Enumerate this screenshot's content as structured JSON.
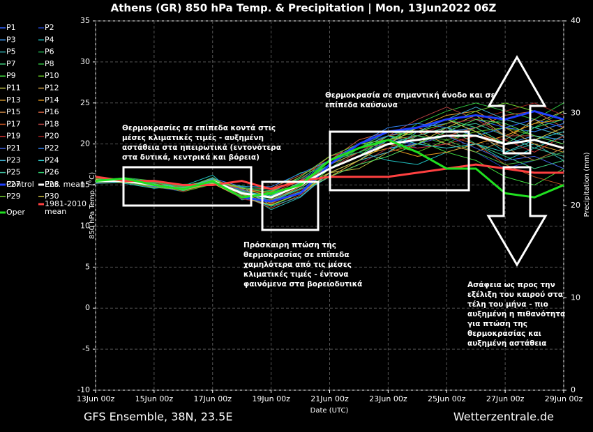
{
  "chart_data": {
    "type": "line",
    "title": "Athens  (GR)  850 hPa Temp. & Precipitation | Mon, 13Jun2022 06Z",
    "ylabel": "850 hPa Temp. (°C)",
    "y2label": "Precipitation (mm)",
    "xlabel": "Date (UTC)",
    "footer_left": "GFS Ensemble, 38N, 23.5E",
    "footer_right": "Wetterzentrale.de",
    "grid": true,
    "x": [
      0,
      1,
      2,
      3,
      4,
      5,
      6,
      7,
      8,
      9,
      10,
      11,
      12,
      13,
      14,
      15,
      16
    ],
    "xlim": [
      0,
      16
    ],
    "xticks": [
      {
        "value": 0,
        "label": "13Jun 00z"
      },
      {
        "value": 2,
        "label": "15Jun 00z"
      },
      {
        "value": 4,
        "label": "17Jun 00z"
      },
      {
        "value": 6,
        "label": "19Jun 00z"
      },
      {
        "value": 8,
        "label": "21Jun 00z"
      },
      {
        "value": 10,
        "label": "23Jun 00z"
      },
      {
        "value": 12,
        "label": "25Jun 00z"
      },
      {
        "value": 14,
        "label": "27Jun 00z"
      },
      {
        "value": 16,
        "label": "29Jun 00z"
      }
    ],
    "ylim": [
      -10,
      35
    ],
    "yticks": [
      -10,
      -5,
      0,
      5,
      10,
      15,
      20,
      25,
      30,
      35
    ],
    "y2lim": [
      0,
      40
    ],
    "y2ticks": [
      0,
      10,
      20,
      30,
      40
    ],
    "annotations": [
      [
        "Θερμοκρασίες σε επίπεδα κοντά στις",
        "μέσες κλιματικές τιμές - αυξημένη",
        "αστάθεια στα ηπειρωτικά (εντονότερα",
        "στα δυτικά, κεντρικά και βόρεια)"
      ],
      [
        "Πρόσκαιρη πτώση της",
        "θερμοκρασίας σε επίπεδα",
        "χαμηλότερα από τις μέσες",
        "κλιματικές τιμές - έντονα",
        "φαινόμενα στα βορειοδυτικά"
      ],
      [
        "Θερμοκρασία σε σημαντική άνοδο και σε",
        "επίπεδα καύσωνα"
      ],
      [
        "Ασάφεια ως προς την",
        "εξέλιξη του καιρού στα",
        "τέλη του μήνα - πιο",
        "αυξημένη η πιθανότητα",
        "για πτώση της",
        "θερμοκρασίας και",
        "αυξημένη αστάθεια"
      ]
    ],
    "series": [
      {
        "name": "P1",
        "color": "#3060ff",
        "values": [
          15.4,
          15.6,
          15.2,
          14.8,
          15.3,
          14.5,
          13,
          15.5,
          18,
          19,
          21,
          22,
          22.5,
          23,
          22,
          23,
          22
        ]
      },
      {
        "name": "P2",
        "color": "#2040c0",
        "values": [
          15.6,
          15.3,
          14.8,
          14.2,
          15.8,
          13.8,
          14,
          16,
          18.5,
          20,
          21,
          19.5,
          20,
          19,
          17,
          18,
          19
        ]
      },
      {
        "name": "P3",
        "color": "#40a0ff",
        "values": [
          15.2,
          15.8,
          15.4,
          14.6,
          15,
          14.8,
          12.5,
          14,
          16,
          17.5,
          19.5,
          20,
          21.5,
          22,
          20,
          21,
          20.5
        ]
      },
      {
        "name": "P4",
        "color": "#20c0c0",
        "values": [
          15.7,
          15.2,
          14.6,
          14.9,
          16.2,
          13.2,
          13.5,
          15,
          17.5,
          19,
          18,
          17.5,
          19,
          20,
          18,
          19.5,
          21
        ]
      },
      {
        "name": "P5",
        "color": "#30b0b0",
        "values": [
          15.3,
          15.7,
          15.3,
          14.3,
          15.6,
          14.2,
          12,
          13.5,
          16.5,
          18,
          20.5,
          22,
          23,
          21.5,
          19,
          20,
          18
        ]
      },
      {
        "name": "P6",
        "color": "#20b050",
        "values": [
          15.5,
          15.5,
          14.9,
          15.1,
          15.2,
          14.9,
          14.5,
          16.5,
          17,
          19.5,
          21.5,
          21,
          20,
          22,
          23,
          22,
          24
        ]
      },
      {
        "name": "P7",
        "color": "#40d080",
        "values": [
          15.6,
          15.4,
          15.1,
          14.4,
          15.9,
          13.5,
          13,
          14.5,
          16,
          18,
          19,
          21,
          22,
          20,
          18.5,
          17,
          18
        ]
      },
      {
        "name": "P8",
        "color": "#30c040",
        "values": [
          15.4,
          15.9,
          15.5,
          14.7,
          15.4,
          14.6,
          14,
          15.5,
          17.5,
          19,
          20,
          22.5,
          24,
          25,
          24,
          23,
          25
        ]
      },
      {
        "name": "P9",
        "color": "#40e040",
        "values": [
          15.2,
          15.3,
          14.7,
          14.5,
          15.7,
          13.6,
          12.5,
          14,
          17,
          18.5,
          21,
          20.5,
          19,
          18,
          16,
          15,
          17
        ]
      },
      {
        "name": "P10",
        "color": "#60c020",
        "values": [
          15.8,
          15.6,
          15,
          14.2,
          15.1,
          14.4,
          13.8,
          15.2,
          18,
          20,
          20,
          19,
          20.5,
          21.5,
          22,
          21,
          20
        ]
      },
      {
        "name": "P11",
        "color": "#c0c040",
        "values": [
          15.5,
          15.7,
          15.2,
          14.8,
          15.5,
          14,
          13,
          14.8,
          16.5,
          17,
          19,
          20,
          22,
          23.5,
          21,
          22.5,
          24
        ]
      },
      {
        "name": "P12",
        "color": "#d0a040",
        "values": [
          15.3,
          15.4,
          14.8,
          14.6,
          15.8,
          14.3,
          14.2,
          16,
          18.5,
          19.5,
          21,
          21.5,
          20,
          19,
          20.5,
          23,
          21
        ]
      },
      {
        "name": "P13",
        "color": "#e0a030",
        "values": [
          15.7,
          15.5,
          15.3,
          14.4,
          15.3,
          13.9,
          12.8,
          14.2,
          16,
          18,
          20,
          22,
          23.5,
          24,
          22,
          20,
          19
        ]
      },
      {
        "name": "P14",
        "color": "#f0a020",
        "values": [
          15.5,
          15.8,
          15.1,
          14.9,
          15.6,
          14.7,
          13.5,
          15,
          17,
          18.5,
          19.5,
          18.5,
          19,
          20,
          21,
          22.5,
          23
        ]
      },
      {
        "name": "P15",
        "color": "#c08040",
        "values": [
          15.4,
          15.3,
          14.9,
          14.3,
          15.2,
          13.4,
          13.2,
          14.8,
          17.5,
          19,
          20.5,
          21,
          22,
          21,
          19.5,
          18,
          19.5
        ]
      },
      {
        "name": "P16",
        "color": "#d06040",
        "values": [
          15.6,
          15.6,
          15.4,
          14.6,
          15.7,
          14.5,
          14.6,
          16.2,
          18,
          20.5,
          21.5,
          22,
          21,
          22,
          23.5,
          24,
          22
        ]
      },
      {
        "name": "P17",
        "color": "#c05020",
        "values": [
          15.3,
          15.7,
          15,
          14.7,
          15.4,
          13.7,
          12.2,
          13.8,
          16.5,
          18,
          19,
          20,
          21,
          20,
          17.5,
          16,
          15
        ]
      },
      {
        "name": "P18",
        "color": "#b04040",
        "values": [
          15.5,
          15.4,
          14.7,
          14.5,
          15.9,
          14.1,
          13.6,
          15.4,
          17,
          19,
          21,
          23,
          24.5,
          23,
          21,
          21,
          20
        ]
      },
      {
        "name": "P19",
        "color": "#d03030",
        "values": [
          15.7,
          15.5,
          15.2,
          14.8,
          15.1,
          14.6,
          13.9,
          15.6,
          18.5,
          19.5,
          20,
          19.5,
          20,
          21,
          20.5,
          19,
          21
        ]
      },
      {
        "name": "P20",
        "color": "#a02020",
        "values": [
          15.4,
          15.8,
          15.3,
          14.2,
          15.6,
          13.3,
          12.7,
          14.4,
          16,
          17.5,
          19.5,
          21,
          22.5,
          23,
          24,
          25,
          23.5
        ]
      },
      {
        "name": "P21",
        "color": "#4060e0",
        "values": [
          15.2,
          15.4,
          14.8,
          14.6,
          15.3,
          14.4,
          13.4,
          15,
          17,
          18.5,
          20.5,
          20,
          21,
          19.5,
          18,
          18.5,
          17
        ]
      },
      {
        "name": "P22",
        "color": "#3080f0",
        "values": [
          15.6,
          15.6,
          15.1,
          14.4,
          15.8,
          14.8,
          14.8,
          16.4,
          18,
          20,
          22,
          22.5,
          22,
          21,
          22,
          21.5,
          22.5
        ]
      },
      {
        "name": "P23",
        "color": "#40b0d0",
        "values": [
          15.5,
          15.3,
          15,
          14.9,
          15.5,
          13.6,
          12.4,
          13.6,
          16.5,
          18,
          19,
          21.5,
          23,
          24.5,
          23,
          22,
          21
        ]
      },
      {
        "name": "P24",
        "color": "#30d0d0",
        "values": [
          15.3,
          15.7,
          15.4,
          14.5,
          15.2,
          14.2,
          13.7,
          15.3,
          17.5,
          19.5,
          21,
          20,
          19.5,
          20,
          19,
          20.5,
          21.5
        ]
      },
      {
        "name": "P25",
        "color": "#40c0a0",
        "values": [
          15.7,
          15.5,
          14.9,
          14.7,
          15.7,
          14,
          13.1,
          14.6,
          17,
          18.5,
          20,
          21,
          22,
          22.5,
          21,
          19.5,
          18.5
        ]
      },
      {
        "name": "P26",
        "color": "#30d070",
        "values": [
          15.4,
          15.6,
          15.2,
          14.3,
          15.4,
          14.7,
          14.3,
          15.8,
          18,
          19,
          20.5,
          22,
          23,
          22,
          20,
          22,
          23
        ]
      },
      {
        "name": "P27",
        "color": "#50e060",
        "values": [
          15.6,
          15.4,
          15,
          14.6,
          15.9,
          13.8,
          12.9,
          14.2,
          16,
          17.5,
          18.5,
          20,
          21.5,
          23,
          22.5,
          21,
          20
        ]
      },
      {
        "name": "P28",
        "color": "#40b040",
        "values": [
          15.5,
          15.8,
          15.3,
          14.8,
          15.3,
          14.3,
          13.3,
          15.1,
          17.5,
          19.5,
          21.5,
          21,
          20.5,
          19,
          17.5,
          18,
          19
        ]
      },
      {
        "name": "P29",
        "color": "#70d030",
        "values": [
          15.3,
          15.5,
          14.7,
          14.5,
          15.6,
          14.6,
          14.1,
          16,
          18.5,
          20,
          20.5,
          21.5,
          22.5,
          24,
          25,
          24,
          23
        ]
      },
      {
        "name": "P30",
        "color": "#d0c040",
        "values": [
          15.7,
          15.3,
          15.1,
          14.4,
          15.2,
          13.5,
          12.6,
          14,
          16.5,
          18,
          20,
          22,
          23,
          21.5,
          20,
          20.5,
          22
        ]
      },
      {
        "name": "Control",
        "color": "#2040ff",
        "values": [
          15.5,
          15.8,
          15,
          14.5,
          15.5,
          13.5,
          13,
          14,
          17.5,
          20,
          21.5,
          22,
          23,
          23.5,
          23,
          24,
          23
        ]
      },
      {
        "name": "Ens. mean",
        "color": "#ffffff",
        "values": [
          15.5,
          15.5,
          15,
          14.5,
          15.5,
          14,
          13.5,
          15,
          17,
          18.5,
          20,
          20.5,
          21,
          21,
          20,
          20.5,
          19.5
        ]
      },
      {
        "name": "1981-2010 mean",
        "color": "#ff4040",
        "values": [
          16,
          15.5,
          15.5,
          15,
          15,
          15.5,
          14.5,
          15.5,
          16,
          16,
          16,
          16.5,
          17,
          17.5,
          17,
          16.5,
          16.5
        ]
      },
      {
        "name": "Oper",
        "color": "#20e020",
        "values": [
          15.5,
          15.8,
          15,
          14.5,
          15.5,
          13.5,
          14,
          15,
          18,
          19.5,
          20.5,
          19,
          17,
          17,
          14,
          13.5,
          15
        ]
      }
    ]
  }
}
